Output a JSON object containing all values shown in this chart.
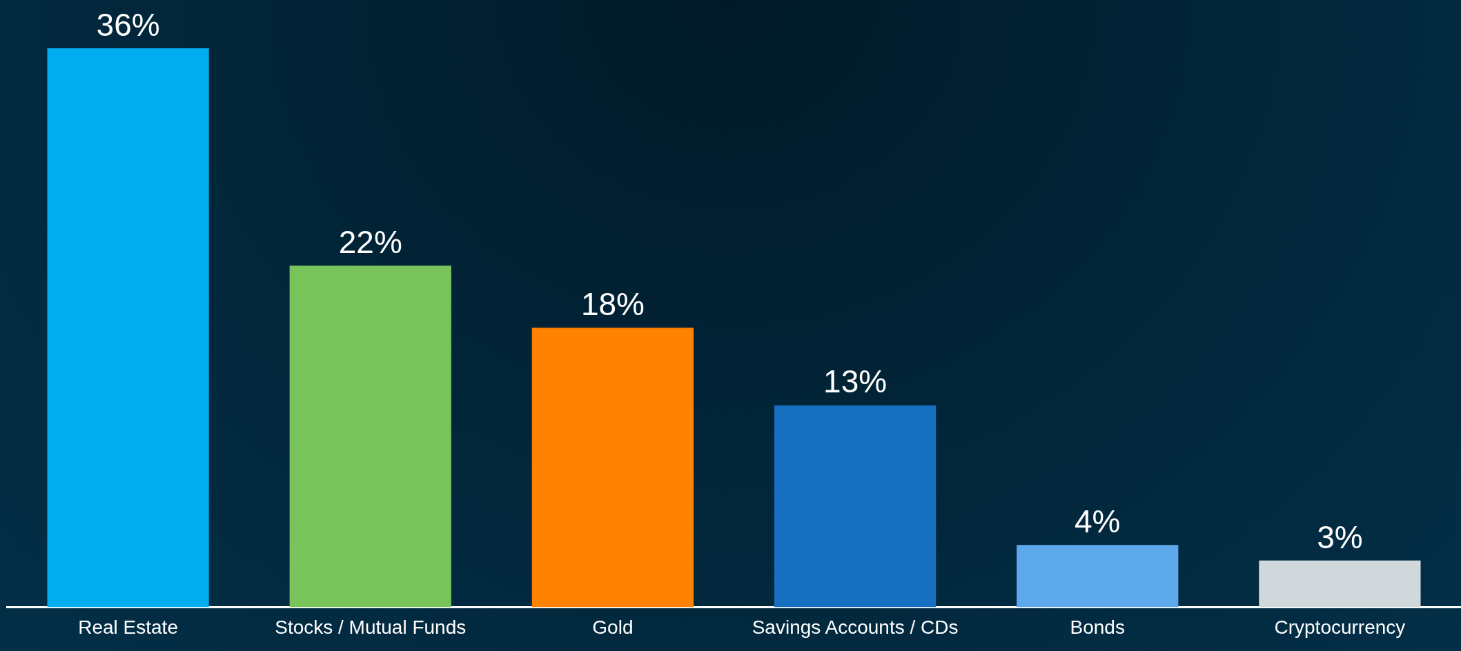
{
  "chart_data": {
    "type": "bar",
    "categories": [
      "Real Estate",
      "Stocks / Mutual Funds",
      "Gold",
      "Savings Accounts / CDs",
      "Bonds",
      "Cryptocurrency"
    ],
    "values": [
      36,
      22,
      18,
      13,
      4,
      3
    ],
    "colors": [
      "#00adef",
      "#78c45a",
      "#ff8200",
      "#166fbf",
      "#5ea8ec",
      "#d0d8dc"
    ],
    "value_labels": [
      "36%",
      "22%",
      "18%",
      "13%",
      "4%",
      "3%"
    ],
    "grid": false,
    "legend": false
  }
}
